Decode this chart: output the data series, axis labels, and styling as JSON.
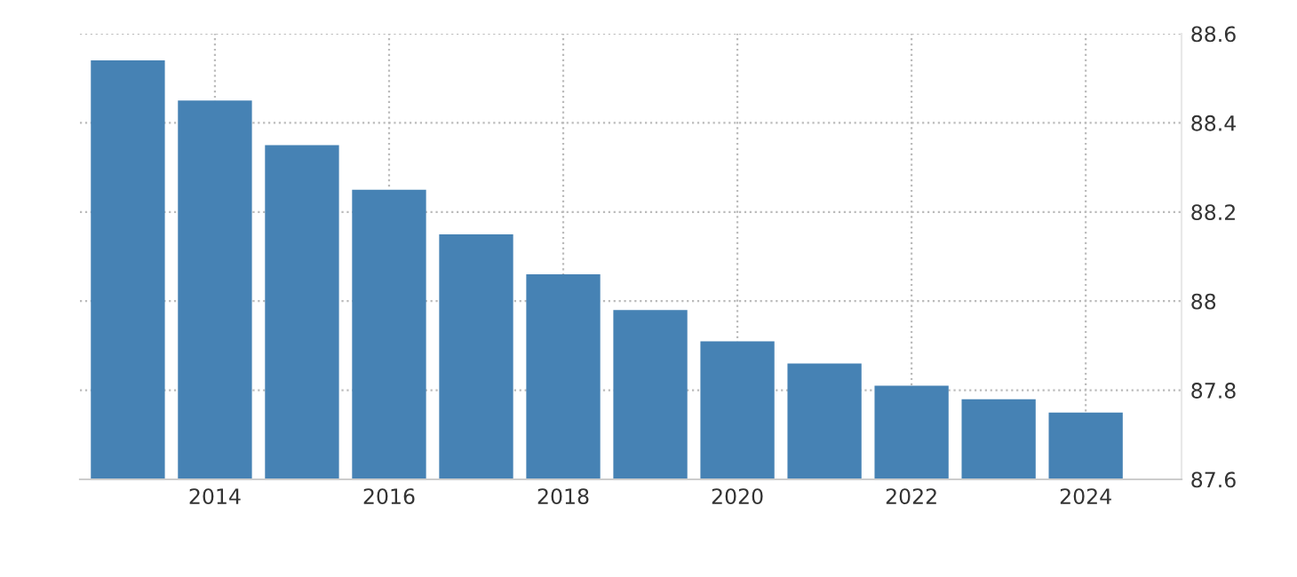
{
  "chart_data": {
    "type": "bar",
    "x": [
      2013,
      2014,
      2015,
      2016,
      2017,
      2018,
      2019,
      2020,
      2021,
      2022,
      2023,
      2024
    ],
    "values": [
      88.54,
      88.45,
      88.35,
      88.25,
      88.15,
      88.06,
      87.98,
      87.91,
      87.86,
      87.81,
      87.78,
      87.75
    ],
    "color": "#4682b4",
    "xlim": [
      2012.45,
      2025.1
    ],
    "xticks": [
      2014,
      2016,
      2018,
      2020,
      2022,
      2024
    ],
    "ylim": [
      87.6,
      88.6
    ],
    "yticks": [
      87.6,
      87.8,
      88,
      88.2,
      88.4,
      88.6
    ],
    "grid": true
  }
}
